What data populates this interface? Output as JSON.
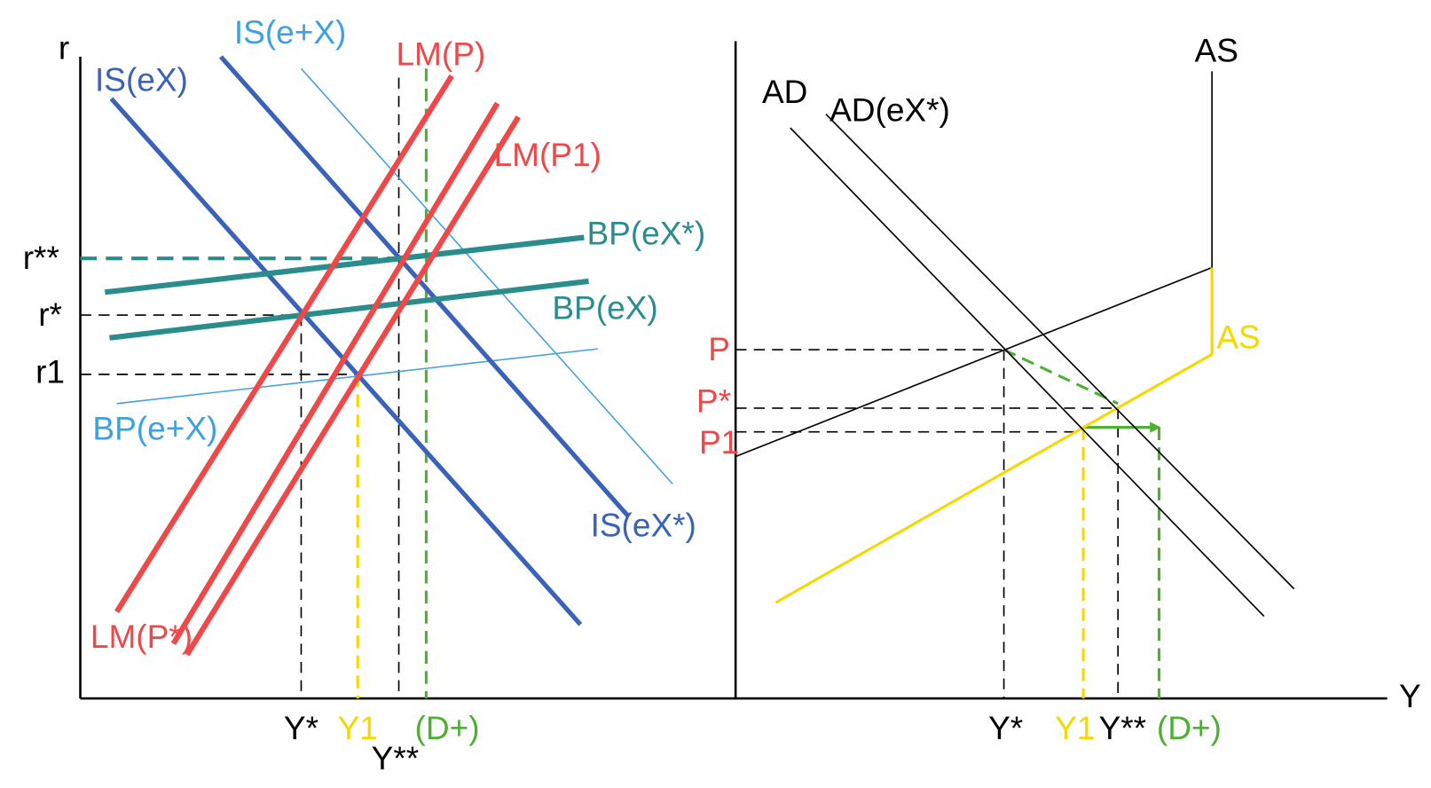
{
  "left_panel": {
    "y_axis_label": "r",
    "curves": {
      "is_ex": "IS(eX)",
      "is_e_plus_x": "IS(e+X)",
      "is_ex_star": "IS(eX*)",
      "lm_p": "LM(P)",
      "lm_p1": "LM(P1)",
      "lm_p_star": "LM(P*)",
      "bp_ex_star": "BP(eX*)",
      "bp_ex": "BP(eX)",
      "bp_e_plus_x": "BP(e+X)"
    },
    "y_labels": {
      "r_double_star": "r**",
      "r_star": "r*",
      "r1": "r1"
    },
    "x_labels": {
      "y_star": "Y*",
      "y1": "Y1",
      "d_plus": "(D+)",
      "y_double_star": "Y**"
    }
  },
  "right_panel": {
    "curves": {
      "ad": "AD",
      "ad_ex_star": "AD(eX*)",
      "as_black": "AS",
      "as_yellow": "AS"
    },
    "y_labels": {
      "p": "P",
      "p_star": "P*",
      "p1": "P1"
    },
    "x_labels": {
      "y_star": "Y*",
      "y1": "Y1",
      "y_double_star": "Y**",
      "d_plus": "(D+)"
    }
  },
  "x_axis_label": "Y"
}
